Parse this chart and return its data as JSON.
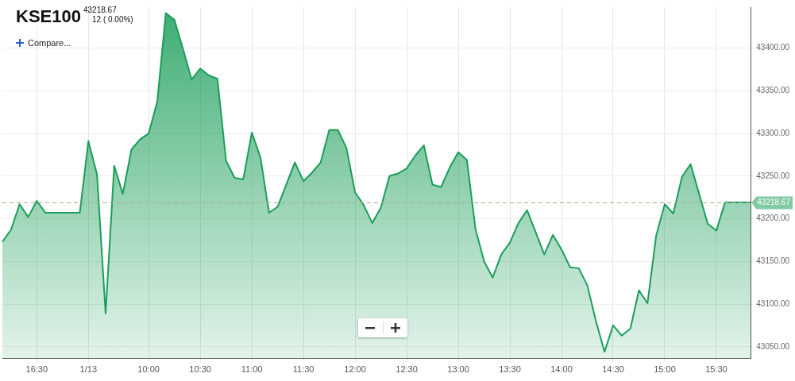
{
  "chart_data": {
    "type": "area",
    "title": "KSE100",
    "annotations": [
      "43218.67",
      "12 ( 0.00%)",
      "Compare..."
    ],
    "categories": [
      null,
      null,
      null,
      null,
      "16:30",
      null,
      null,
      null,
      null,
      null,
      "1/13",
      null,
      null,
      null,
      null,
      null,
      null,
      "10:00",
      null,
      null,
      null,
      null,
      null,
      "10:30",
      null,
      null,
      null,
      null,
      null,
      "11:00",
      null,
      null,
      null,
      null,
      null,
      "11:30",
      null,
      null,
      null,
      null,
      null,
      "12:00",
      null,
      null,
      null,
      null,
      null,
      "12:30",
      null,
      null,
      null,
      null,
      null,
      "13:00",
      null,
      null,
      null,
      null,
      null,
      "13:30",
      null,
      null,
      null,
      null,
      null,
      "14:00",
      null,
      null,
      null,
      null,
      null,
      "14:30",
      null,
      null,
      null,
      null,
      null,
      "15:00",
      null,
      null,
      null,
      null,
      null,
      "15:30",
      null,
      null,
      null,
      null
    ],
    "series": [
      {
        "color": "#1b9e5a",
        "values": [
          43173,
          43187,
          43217,
          43202,
          43221,
          43207,
          43207,
          43207,
          43207,
          43207,
          43291,
          43252,
          43089,
          43262,
          43229,
          43281,
          43293,
          43300,
          43337,
          43441,
          43433,
          43399,
          43363,
          43376,
          43368,
          43364,
          43268,
          43248,
          43246,
          43301,
          43272,
          43207,
          43214,
          43240,
          43266,
          43244,
          43254,
          43266,
          43304,
          43304,
          43283,
          43231,
          43216,
          43195,
          43213,
          43250,
          43253,
          43259,
          43274,
          43286,
          43240,
          43237,
          43260,
          43278,
          43269,
          43188,
          43150,
          43131,
          43158,
          43172,
          43195,
          43210,
          43184,
          43158,
          43181,
          43164,
          43143,
          43142,
          43122,
          43080,
          43044,
          43075,
          43063,
          43071,
          43116,
          43101,
          43180,
          43217,
          43206,
          43249,
          43264,
          43229,
          43194,
          43186,
          43219,
          43219,
          43219,
          43219
        ]
      }
    ],
    "ylim": [
      43036,
      43448
    ],
    "yticks": [
      {
        "value": 43050,
        "label": "43050.00"
      },
      {
        "value": 43100,
        "label": "43100.00"
      },
      {
        "value": 43150,
        "label": "43150.00"
      },
      {
        "value": 43200,
        "label": "43200.00"
      },
      {
        "value": 43250,
        "label": "43250.00"
      },
      {
        "value": 43300,
        "label": "43300.00"
      },
      {
        "value": 43350,
        "label": "43350.00"
      },
      {
        "value": 43400,
        "label": "43400.00"
      }
    ],
    "ref_lines": [
      {
        "axis": "y",
        "value": 43218.67,
        "label": "43218.67",
        "color": "#b5aa8a",
        "line_style": "dashed"
      }
    ],
    "grid": true,
    "legend": false,
    "marker": "none",
    "line_style": "solid"
  }
}
